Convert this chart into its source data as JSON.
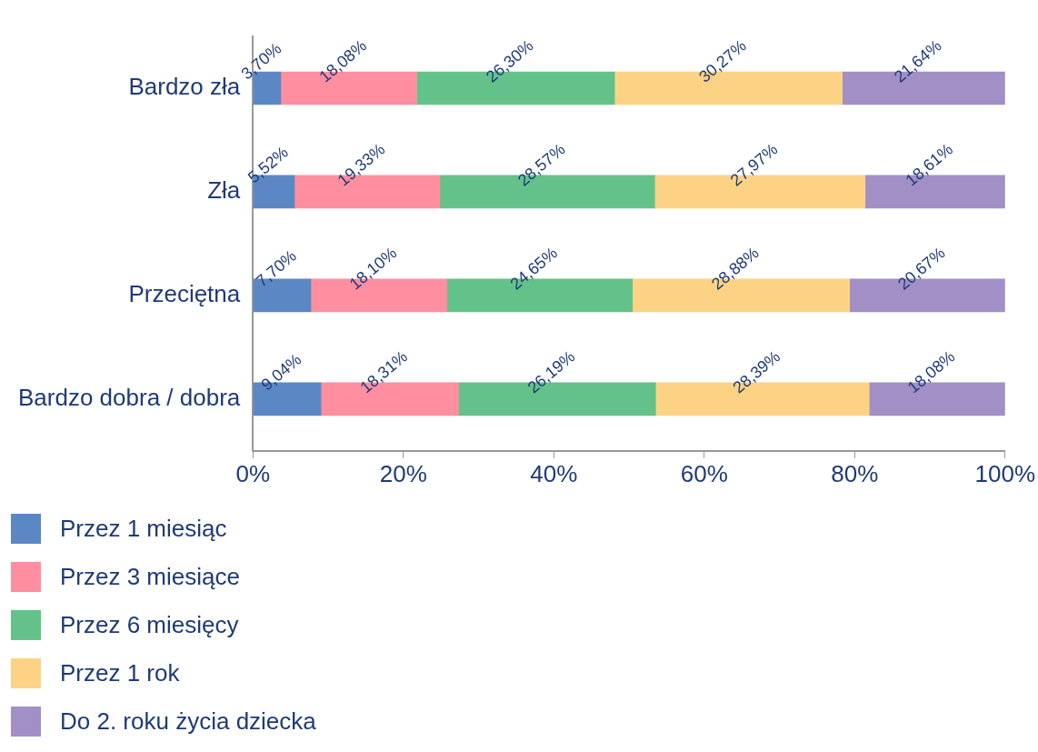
{
  "chart_data": {
    "type": "bar",
    "orientation": "horizontal",
    "stacked": true,
    "categories": [
      "Bardzo zła",
      "Zła",
      "Przeciętna",
      "Bardzo dobra / dobra"
    ],
    "series": [
      {
        "name": "Przez 1 miesiąc",
        "color": "#5b87c5",
        "values": [
          3.7,
          5.52,
          7.7,
          9.04
        ],
        "value_labels": [
          "3,70%",
          "5,52%",
          "7,70%",
          "9,04%"
        ]
      },
      {
        "name": "Przez 3 miesiące",
        "color": "#ff8fa0",
        "values": [
          18.08,
          19.33,
          18.1,
          18.31
        ],
        "value_labels": [
          "18,08%",
          "19,33%",
          "18,10%",
          "18,31%"
        ]
      },
      {
        "name": "Przez 6 miesięcy",
        "color": "#63c28a",
        "values": [
          26.3,
          28.57,
          24.65,
          26.19
        ],
        "value_labels": [
          "26,30%",
          "28,57%",
          "24,65%",
          "26,19%"
        ]
      },
      {
        "name": "Przez 1 rok",
        "color": "#fcd384",
        "values": [
          30.27,
          27.97,
          28.88,
          28.39
        ],
        "value_labels": [
          "30,27%",
          "27,97%",
          "28,88%",
          "28,39%"
        ]
      },
      {
        "name": "Do 2. roku życia dziecka",
        "color": "#a18fc6",
        "values": [
          21.64,
          18.61,
          20.67,
          18.08
        ],
        "value_labels": [
          "21,64%",
          "18,61%",
          "20,67%",
          "18,08%"
        ]
      }
    ],
    "xlim": [
      0,
      100
    ],
    "xticks": [
      {
        "value": 0,
        "label": "0%"
      },
      {
        "value": 20,
        "label": "20%"
      },
      {
        "value": 40,
        "label": "40%"
      },
      {
        "value": 60,
        "label": "60%"
      },
      {
        "value": 80,
        "label": "80%"
      },
      {
        "value": 100,
        "label": "100%"
      }
    ],
    "grid": false,
    "legend": "bottom left"
  }
}
